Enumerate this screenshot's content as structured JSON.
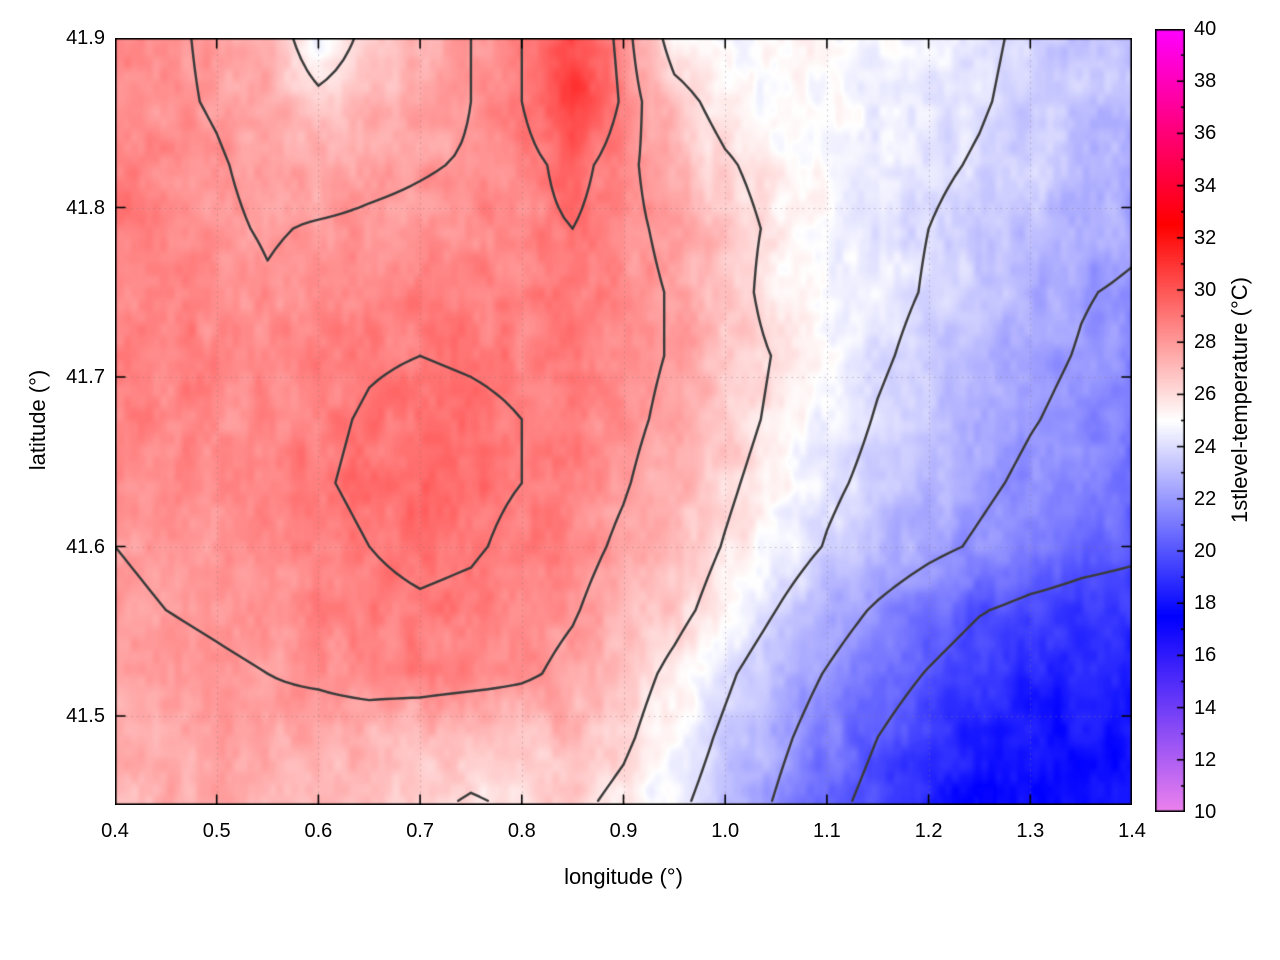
{
  "chart_data": {
    "type": "heatmap",
    "title": "",
    "xlabel": "longitude (°)",
    "ylabel": "latitude (°)",
    "colorbar_label": "1stlevel-temperature (°C)",
    "xlim": [
      0.4,
      1.4
    ],
    "ylim": [
      41.4475,
      41.9
    ],
    "clim": [
      10,
      40
    ],
    "grid": true,
    "xticks": [
      0.4,
      0.5,
      0.6,
      0.7,
      0.8,
      0.9,
      1.0,
      1.1,
      1.2,
      1.3,
      1.4
    ],
    "xtick_labels": [
      "0.4",
      "0.5",
      "0.6",
      "0.7",
      "0.8",
      "0.9",
      "1.0",
      "1.1",
      "1.2",
      "1.3",
      "1.4"
    ],
    "yticks": [
      41.5,
      41.6,
      41.7,
      41.8,
      41.9
    ],
    "ytick_labels": [
      "41.5",
      "41.6",
      "41.7",
      "41.8",
      "41.9"
    ],
    "cbticks": [
      10,
      12,
      14,
      16,
      18,
      20,
      22,
      24,
      26,
      28,
      30,
      32,
      34,
      36,
      38,
      40
    ],
    "cbtick_labels": [
      "10",
      "12",
      "14",
      "16",
      "18",
      "20",
      "22",
      "24",
      "26",
      "28",
      "30",
      "32",
      "34",
      "36",
      "38",
      "40"
    ],
    "palette": [
      [
        10,
        "#ee82ee"
      ],
      [
        17.5,
        "#0000ff"
      ],
      [
        25,
        "#ffffff"
      ],
      [
        32.5,
        "#ff0000"
      ],
      [
        40,
        "#ff00ff"
      ]
    ],
    "contour_levels": [
      20,
      22,
      24,
      26,
      28,
      29
    ],
    "contour_color": "#3a3a3a",
    "lon": [
      0.4,
      0.45,
      0.5,
      0.55,
      0.6,
      0.65,
      0.7,
      0.75,
      0.8,
      0.85,
      0.9,
      0.95,
      1.0,
      1.05,
      1.1,
      1.15,
      1.2,
      1.25,
      1.3,
      1.35,
      1.4
    ],
    "lat": [
      41.9,
      41.8625,
      41.825,
      41.7875,
      41.75,
      41.7125,
      41.675,
      41.6375,
      41.6,
      41.5625,
      41.525,
      41.4875,
      41.45
    ],
    "values": [
      [
        28.4,
        28.2,
        27.8,
        27.2,
        24.8,
        26.5,
        27.2,
        28.0,
        29.0,
        30.6,
        28.6,
        25.2,
        24.6,
        25.0,
        25.2,
        24.8,
        24.5,
        24.2,
        23.8,
        23.4,
        23.0
      ],
      [
        28.3,
        28.2,
        27.9,
        27.5,
        26.4,
        27.0,
        27.4,
        28.0,
        29.0,
        30.9,
        28.8,
        26.6,
        25.4,
        25.0,
        25.0,
        24.7,
        24.4,
        24.1,
        23.7,
        23.3,
        23.0
      ],
      [
        28.6,
        28.4,
        28.1,
        27.7,
        27.4,
        27.7,
        27.9,
        28.1,
        28.5,
        29.5,
        28.3,
        27.3,
        26.2,
        25.4,
        25.0,
        24.6,
        24.2,
        23.9,
        23.5,
        23.1,
        22.7
      ],
      [
        28.8,
        28.6,
        28.2,
        27.9,
        28.1,
        28.2,
        28.3,
        28.4,
        28.6,
        29.0,
        28.3,
        27.7,
        26.7,
        25.7,
        25.0,
        24.4,
        24.0,
        23.6,
        23.2,
        22.7,
        22.3
      ],
      [
        28.7,
        28.8,
        28.5,
        28.1,
        28.4,
        28.6,
        28.6,
        28.6,
        28.7,
        28.8,
        28.4,
        27.9,
        26.9,
        25.3,
        24.9,
        24.4,
        23.9,
        23.3,
        22.7,
        22.1,
        21.8
      ],
      [
        28.6,
        28.7,
        28.6,
        28.4,
        28.6,
        28.9,
        29.0,
        28.9,
        28.8,
        28.8,
        28.4,
        27.9,
        26.9,
        25.9,
        24.9,
        24.2,
        23.6,
        23.0,
        22.4,
        21.9,
        21.5
      ],
      [
        28.4,
        28.6,
        28.5,
        28.5,
        28.8,
        29.1,
        29.3,
        29.2,
        29.0,
        28.7,
        28.3,
        27.7,
        26.7,
        25.7,
        24.7,
        23.9,
        23.3,
        22.7,
        22.1,
        21.6,
        21.2
      ],
      [
        28.2,
        28.4,
        28.4,
        28.5,
        28.9,
        29.2,
        29.3,
        29.2,
        29.0,
        28.6,
        28.1,
        27.4,
        26.3,
        25.3,
        24.3,
        23.6,
        22.9,
        22.3,
        21.7,
        21.2,
        20.8
      ],
      [
        28.0,
        28.2,
        28.3,
        28.4,
        28.7,
        29.0,
        29.2,
        29.1,
        28.8,
        28.4,
        27.8,
        27.0,
        25.9,
        24.9,
        23.9,
        23.1,
        22.4,
        21.8,
        21.2,
        20.7,
        20.4
      ],
      [
        27.8,
        28.0,
        28.1,
        28.2,
        28.5,
        28.8,
        28.9,
        28.8,
        28.5,
        28.1,
        27.4,
        26.5,
        25.3,
        24.0,
        22.8,
        21.8,
        20.9,
        20.1,
        19.6,
        19.3,
        19.1
      ],
      [
        27.6,
        27.8,
        27.9,
        28.0,
        28.2,
        28.5,
        28.6,
        28.5,
        28.2,
        27.7,
        26.8,
        25.6,
        24.3,
        23.0,
        21.9,
        20.8,
        19.9,
        19.1,
        18.7,
        18.5,
        18.4
      ],
      [
        27.4,
        27.6,
        27.7,
        27.6,
        27.4,
        27.3,
        27.0,
        26.7,
        26.9,
        27.1,
        26.3,
        25.0,
        23.7,
        22.4,
        21.2,
        20.0,
        19.0,
        18.2,
        18.0,
        18.0,
        18.1
      ],
      [
        27.2,
        27.4,
        27.5,
        27.4,
        27.1,
        26.8,
        26.3,
        25.9,
        26.2,
        26.4,
        25.6,
        24.4,
        23.2,
        21.9,
        20.6,
        19.4,
        18.4,
        17.8,
        17.7,
        17.8,
        18.0
      ]
    ]
  }
}
